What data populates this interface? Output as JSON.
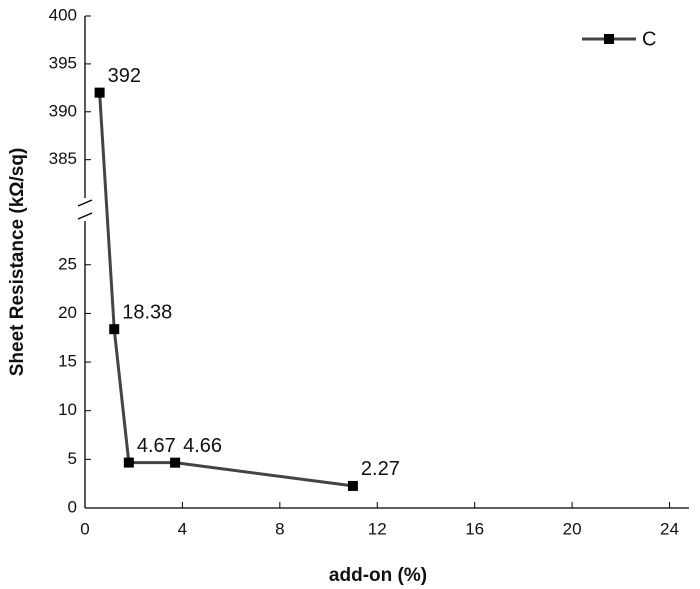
{
  "chart_data": {
    "type": "line",
    "x_label": "add-on (%)",
    "y_label": "Sheet Resistance (kΩ/sq)",
    "series": [
      {
        "name": "C",
        "color": "#444444",
        "marker_color": "#000000",
        "x": [
          0.6,
          1.2,
          1.8,
          3.7,
          11
        ],
        "values": [
          392,
          18.38,
          4.67,
          4.66,
          2.27
        ]
      }
    ],
    "xlim": [
      0,
      24.8
    ],
    "xticks": [
      0,
      4,
      8,
      12,
      16,
      20,
      24
    ],
    "ylim": [
      0,
      400
    ],
    "ybreak": [
      29.5,
      381
    ],
    "yticks": [
      0,
      5,
      10,
      15,
      20,
      25,
      385,
      390,
      395,
      400
    ],
    "legend": "top-right"
  }
}
